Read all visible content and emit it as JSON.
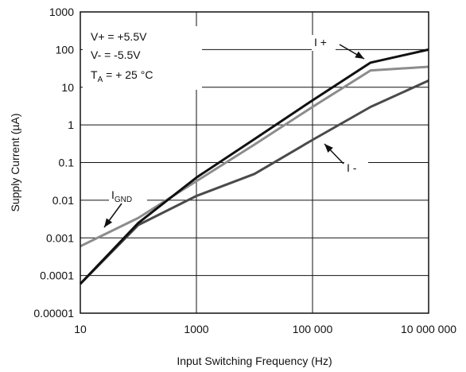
{
  "chart_data": {
    "type": "line",
    "title": "",
    "xlabel": "Input Switching Frequency (Hz)",
    "ylabel": "Supply Current (µA)",
    "xscale": "log",
    "yscale": "log",
    "xlim": [
      10,
      10000000
    ],
    "ylim": [
      1e-05,
      1000
    ],
    "grid": true,
    "x_ticks": [
      {
        "value": 10,
        "label": "10"
      },
      {
        "value": 1000,
        "label": "1000"
      },
      {
        "value": 100000,
        "label": "100 000"
      },
      {
        "value": 10000000,
        "label": "10 000 000"
      }
    ],
    "y_ticks": [
      {
        "value": 1000,
        "label": "1000"
      },
      {
        "value": 100,
        "label": "100"
      },
      {
        "value": 10,
        "label": "10"
      },
      {
        "value": 1,
        "label": "1"
      },
      {
        "value": 0.1,
        "label": "0.1"
      },
      {
        "value": 0.01,
        "label": "0.01"
      },
      {
        "value": 0.001,
        "label": "0.001"
      },
      {
        "value": 0.0001,
        "label": "0.0001"
      },
      {
        "value": 1e-05,
        "label": "0.00001"
      }
    ],
    "conditions": [
      "V+ = +5.5V",
      "V- = -5.5V"
    ],
    "temperature": {
      "symbol": "T",
      "subscript": "A",
      "rest": " = + 25 °C"
    },
    "series": [
      {
        "id": "i_plus",
        "label_main": "I +",
        "label_sub": "",
        "color": "#111111",
        "x": [
          10,
          100,
          1000,
          10000,
          100000,
          1000000,
          10000000
        ],
        "y": [
          6e-05,
          0.0025,
          0.04,
          0.42,
          4.5,
          45,
          100
        ]
      },
      {
        "id": "i_gnd",
        "label_main": "I",
        "label_sub": "GND",
        "color": "#8c8c8c",
        "x": [
          10,
          100,
          1000,
          10000,
          100000,
          1000000,
          10000000
        ],
        "y": [
          0.0006,
          0.0034,
          0.032,
          0.3,
          3,
          28,
          35
        ]
      },
      {
        "id": "i_minus",
        "label_main": "I -",
        "label_sub": "",
        "color": "#4a4a4a",
        "x": [
          10,
          100,
          1000,
          10000,
          100000,
          1000000,
          10000000
        ],
        "y": [
          6e-05,
          0.0022,
          0.013,
          0.05,
          0.4,
          3,
          15
        ]
      }
    ]
  }
}
